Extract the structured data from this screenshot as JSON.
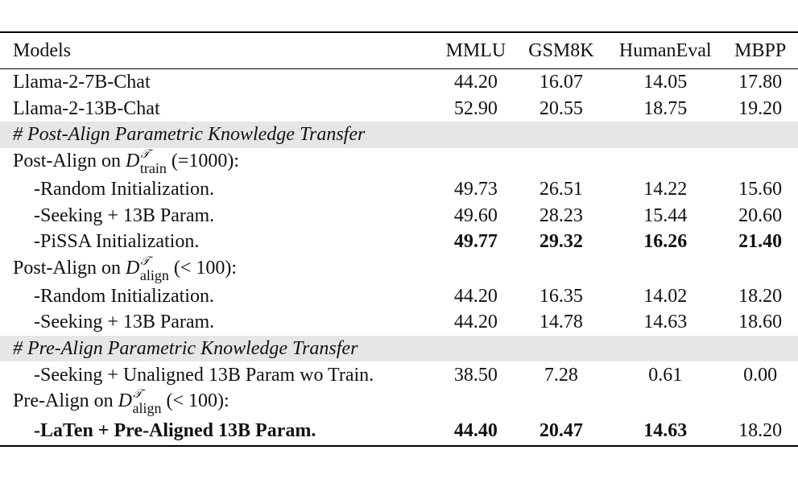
{
  "table": {
    "header": {
      "models": "Models",
      "mmlu": "MMLU",
      "gsm8k": "GSM8K",
      "humaneval": "HumanEval",
      "mbpp": "MBPP"
    },
    "baselines": [
      {
        "model": "Llama-2-7B-Chat",
        "mmlu": "44.20",
        "gsm8k": "16.07",
        "humaneval": "14.05",
        "mbpp": "17.80"
      },
      {
        "model": "Llama-2-13B-Chat",
        "mmlu": "52.90",
        "gsm8k": "20.55",
        "humaneval": "18.75",
        "mbpp": "19.20"
      }
    ],
    "post_align_section": "# Post-Align Parametric Knowledge Transfer",
    "post_align_train": {
      "label_prefix": "Post-Align on ",
      "symbol": "D",
      "superscript": "𝒯",
      "subscript": "train",
      "suffix": " (=1000):",
      "rows": [
        {
          "model": "-Random Initialization.",
          "mmlu": "49.73",
          "gsm8k": "26.51",
          "humaneval": "14.22",
          "mbpp": "15.60"
        },
        {
          "model": "-Seeking + 13B Param.",
          "mmlu": "49.60",
          "gsm8k": "28.23",
          "humaneval": "15.44",
          "mbpp": "20.60"
        },
        {
          "model": "-PiSSA Initialization.",
          "mmlu": "49.77",
          "gsm8k": "29.32",
          "humaneval": "16.26",
          "mbpp": "21.40"
        }
      ]
    },
    "post_align_align": {
      "label_prefix": "Post-Align on ",
      "symbol": "D",
      "superscript": "𝒯",
      "subscript": "align",
      "suffix": " (< 100):",
      "rows": [
        {
          "model": "-Random Initialization.",
          "mmlu": "44.20",
          "gsm8k": "16.35",
          "humaneval": "14.02",
          "mbpp": "18.20"
        },
        {
          "model": "-Seeking + 13B Param.",
          "mmlu": "44.20",
          "gsm8k": "14.78",
          "humaneval": "14.63",
          "mbpp": "18.60"
        }
      ]
    },
    "pre_align_section": "# Pre-Align Parametric Knowledge Transfer",
    "pre_align_unaligned": {
      "model": "-Seeking + Unaligned 13B Param wo Train.",
      "mmlu": "38.50",
      "gsm8k": "7.28",
      "humaneval": "0.61",
      "mbpp": "0.00"
    },
    "pre_align_align": {
      "label_prefix": "Pre-Align on ",
      "symbol": "D",
      "superscript": "𝒯",
      "subscript": "align",
      "suffix": " (< 100):",
      "rows": [
        {
          "model": "-LaTen + Pre-Aligned 13B Param.",
          "mmlu": "44.40",
          "gsm8k": "20.47",
          "humaneval": "14.63",
          "mbpp": "18.20"
        }
      ]
    }
  }
}
